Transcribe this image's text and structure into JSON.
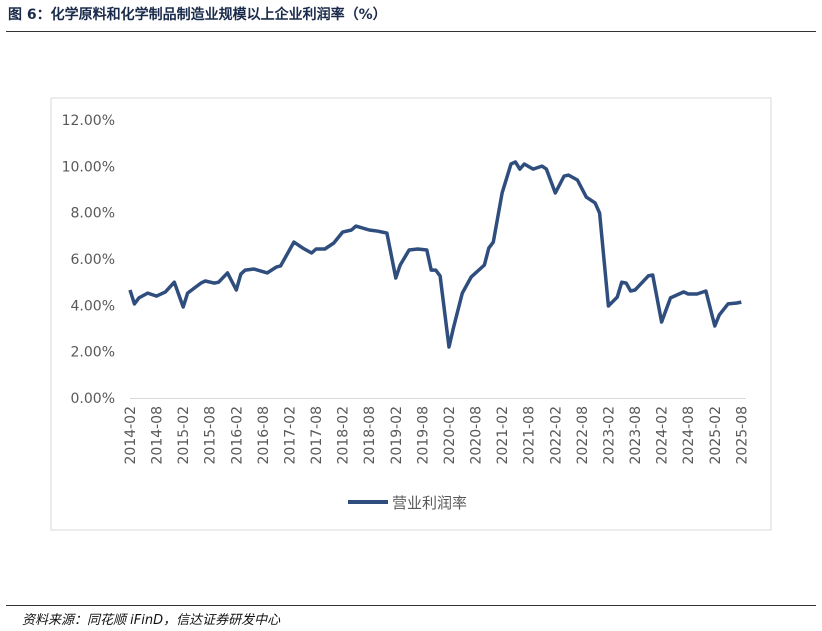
{
  "title": "图 6：化学原料和化学制品制造业规模以上企业利润率（%）",
  "source": "资料来源：同花顺 iFinD，信达证券研发中心",
  "chart_data": {
    "type": "line",
    "title": "",
    "xlabel": "",
    "ylabel": "",
    "ylim": [
      0,
      12
    ],
    "yticks": [
      "0.00%",
      "2.00%",
      "4.00%",
      "6.00%",
      "8.00%",
      "10.00%",
      "12.00%"
    ],
    "xticks": [
      "2014-02",
      "2014-08",
      "2015-02",
      "2015-08",
      "2016-02",
      "2016-08",
      "2017-02",
      "2017-08",
      "2018-02",
      "2018-08",
      "2019-02",
      "2019-08",
      "2020-02",
      "2020-08",
      "2021-02",
      "2021-08",
      "2022-02",
      "2022-08",
      "2023-02",
      "2023-08",
      "2024-02",
      "2024-08",
      "2025-02",
      "2025-08"
    ],
    "grid": false,
    "legend_position": "bottom",
    "color": "#2f4e7e",
    "series": [
      {
        "name": "营业利润率",
        "x": [
          "2014-02",
          "2014-03",
          "2014-04",
          "2014-06",
          "2014-08",
          "2014-10",
          "2014-12",
          "2015-02",
          "2015-03",
          "2015-06",
          "2015-07",
          "2015-09",
          "2015-10",
          "2015-12",
          "2016-02",
          "2016-03",
          "2016-04",
          "2016-06",
          "2016-09",
          "2016-11",
          "2016-12",
          "2017-03",
          "2017-05",
          "2017-07",
          "2017-08",
          "2017-10",
          "2017-12",
          "2018-02",
          "2018-04",
          "2018-05",
          "2018-08",
          "2018-10",
          "2018-12",
          "2019-02",
          "2019-03",
          "2019-05",
          "2019-07",
          "2019-09",
          "2019-10",
          "2019-11",
          "2019-12",
          "2020-02",
          "2020-03",
          "2020-05",
          "2020-07",
          "2020-10",
          "2020-11",
          "2020-12",
          "2021-02",
          "2021-04",
          "2021-05",
          "2021-06",
          "2021-07",
          "2021-09",
          "2021-11",
          "2021-12",
          "2022-02",
          "2022-04",
          "2022-05",
          "2022-07",
          "2022-09",
          "2022-11",
          "2022-12",
          "2023-02",
          "2023-04",
          "2023-05",
          "2023-06",
          "2023-07",
          "2023-08",
          "2023-11",
          "2023-12",
          "2024-02",
          "2024-04",
          "2024-07",
          "2024-08",
          "2024-10",
          "2024-12",
          "2025-02",
          "2025-03",
          "2025-05",
          "2025-07",
          "2025-08"
        ],
        "values": [
          4.66,
          4.06,
          4.32,
          4.53,
          4.4,
          4.58,
          5.0,
          3.93,
          4.53,
          4.96,
          5.05,
          4.96,
          5.0,
          5.4,
          4.66,
          5.35,
          5.52,
          5.57,
          5.4,
          5.65,
          5.7,
          6.73,
          6.47,
          6.26,
          6.43,
          6.43,
          6.69,
          7.16,
          7.25,
          7.42,
          7.25,
          7.2,
          7.12,
          5.18,
          5.74,
          6.39,
          6.43,
          6.39,
          5.52,
          5.52,
          5.27,
          2.2,
          3.02,
          4.53,
          5.22,
          5.74,
          6.47,
          6.73,
          8.85,
          10.1,
          10.19,
          9.88,
          10.1,
          9.88,
          10.01,
          9.88,
          8.85,
          9.58,
          9.62,
          9.41,
          8.67,
          8.42,
          7.98,
          3.97,
          4.36,
          5.0,
          4.96,
          4.62,
          4.66,
          5.27,
          5.31,
          3.28,
          4.32,
          4.58,
          4.49,
          4.49,
          4.62,
          3.11,
          3.58,
          4.06,
          4.1,
          4.14
        ]
      }
    ]
  }
}
